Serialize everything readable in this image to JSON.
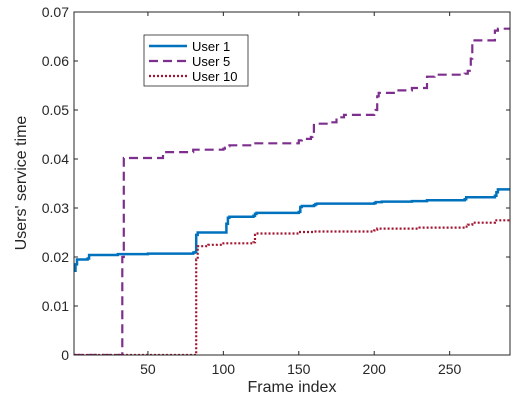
{
  "chart_data": {
    "type": "line",
    "xlabel": "Frame index",
    "ylabel": "Users' service time",
    "xlim": [
      1,
      290
    ],
    "ylim": [
      0,
      0.07
    ],
    "xticks": [
      50,
      100,
      150,
      200,
      250
    ],
    "xtick_labels": [
      "50",
      "100",
      "150",
      "200",
      "250"
    ],
    "yticks": [
      0,
      0.01,
      0.02,
      0.03,
      0.04,
      0.05,
      0.06,
      0.07
    ],
    "ytick_labels": [
      "0",
      "0.01",
      "0.02",
      "0.03",
      "0.04",
      "0.05",
      "0.06",
      "0.07"
    ],
    "grid": false,
    "legend_position": "top-left",
    "series": [
      {
        "name": "User 1",
        "color": "#0072bd",
        "style": "solid",
        "x": [
          1,
          2,
          3,
          10,
          11,
          30,
          50,
          80,
          81,
          82,
          83,
          101,
          102,
          103,
          104,
          120,
          121,
          122,
          150,
          151,
          152,
          160,
          161,
          162,
          200,
          201,
          205,
          225,
          235,
          260,
          261,
          280,
          281,
          282,
          290
        ],
        "y": [
          0.0172,
          0.0185,
          0.0195,
          0.0197,
          0.0204,
          0.0206,
          0.0207,
          0.0209,
          0.021,
          0.0245,
          0.025,
          0.025,
          0.0268,
          0.028,
          0.0282,
          0.0284,
          0.0288,
          0.029,
          0.0292,
          0.0302,
          0.0304,
          0.0306,
          0.0308,
          0.0309,
          0.031,
          0.0312,
          0.0313,
          0.0314,
          0.0316,
          0.0318,
          0.0322,
          0.0325,
          0.0332,
          0.0338,
          0.0338
        ]
      },
      {
        "name": "User 5",
        "color": "#7e2f8e",
        "style": "dashed",
        "x": [
          1,
          32,
          33,
          34,
          60,
          80,
          100,
          101,
          102,
          103,
          104,
          120,
          150,
          152,
          158,
          159,
          160,
          170,
          175,
          180,
          200,
          201,
          202,
          203,
          215,
          225,
          235,
          240,
          260,
          262,
          264,
          265,
          280,
          282,
          290
        ],
        "y": [
          0,
          0,
          0.02,
          0.0402,
          0.0414,
          0.0419,
          0.0421,
          0.0423,
          0.0425,
          0.0426,
          0.0428,
          0.0432,
          0.0438,
          0.0441,
          0.0445,
          0.045,
          0.0472,
          0.0475,
          0.0485,
          0.049,
          0.0492,
          0.05,
          0.0528,
          0.0535,
          0.054,
          0.0545,
          0.0568,
          0.0572,
          0.0574,
          0.058,
          0.0605,
          0.0642,
          0.0662,
          0.0666,
          0.0666
        ]
      },
      {
        "name": "User 10",
        "color": "#a2142f",
        "style": "dotted",
        "x": [
          1,
          81,
          82,
          83,
          90,
          100,
          120,
          121,
          122,
          150,
          160,
          200,
          201,
          202,
          230,
          260,
          262,
          265,
          280,
          290
        ],
        "y": [
          0,
          0,
          0.0195,
          0.0222,
          0.0225,
          0.0228,
          0.023,
          0.0245,
          0.0248,
          0.0251,
          0.0252,
          0.0254,
          0.0256,
          0.0258,
          0.026,
          0.0262,
          0.0266,
          0.027,
          0.0275,
          0.0277
        ]
      }
    ]
  }
}
